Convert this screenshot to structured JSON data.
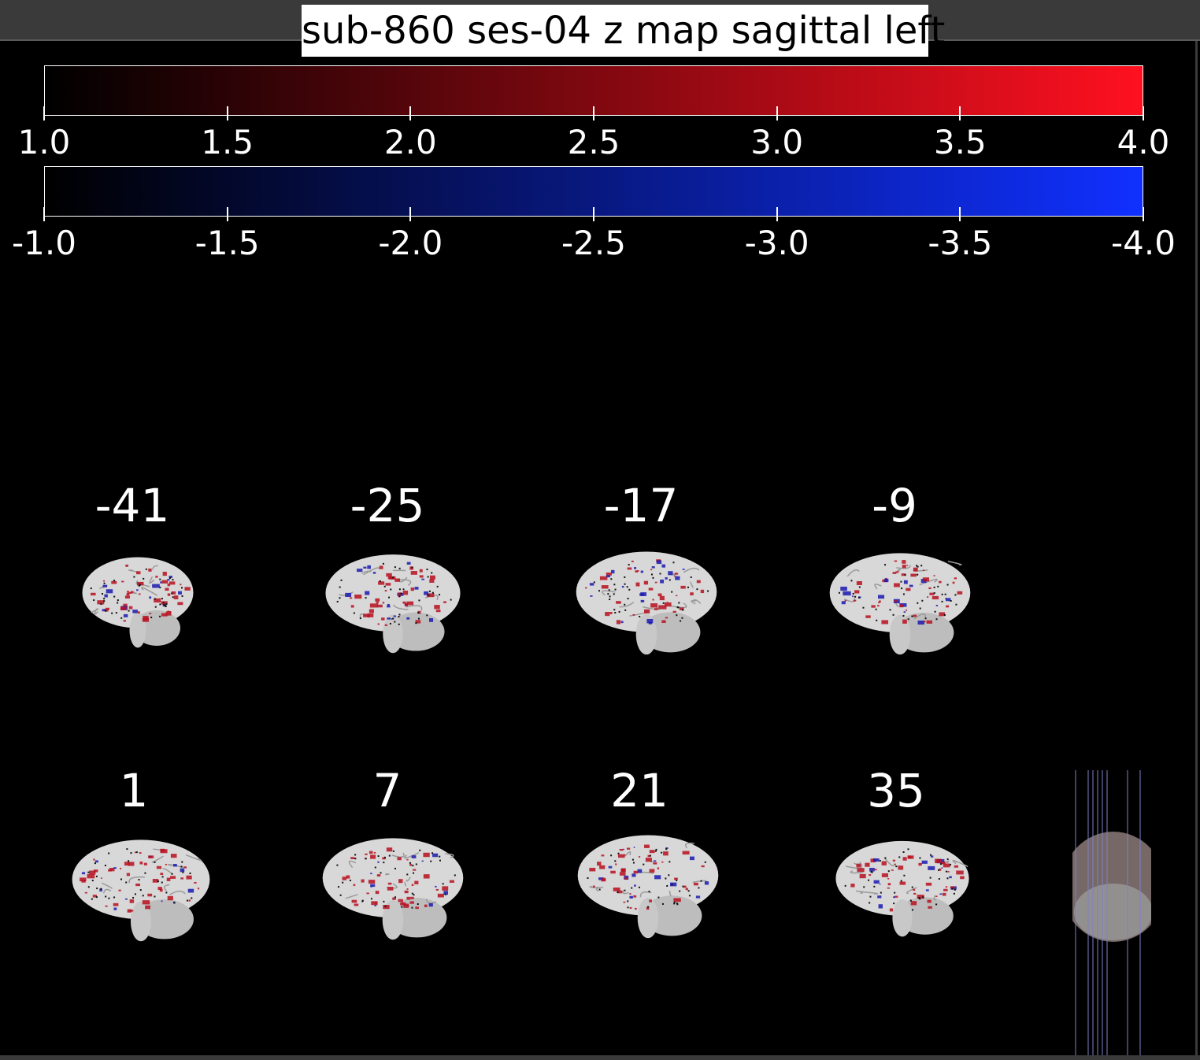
{
  "title": "sub-860 ses-04 z map sagittal left",
  "colorbars": {
    "positive": {
      "ticks": [
        "1.0",
        "1.5",
        "2.0",
        "2.5",
        "3.0",
        "3.5",
        "4.0"
      ],
      "color_low": "#000000",
      "color_high": "#ff1020"
    },
    "negative": {
      "ticks": [
        "-1.0",
        "-1.5",
        "-2.0",
        "-2.5",
        "-3.0",
        "-3.5",
        "-4.0"
      ],
      "color_low": "#000000",
      "color_high": "#1030ff"
    }
  },
  "slices": {
    "row1": [
      "-41",
      "-25",
      "-17",
      "-9"
    ],
    "row2": [
      "1",
      "7",
      "21",
      "35"
    ]
  },
  "colors": {
    "background": "#000000",
    "toolbar": "#3a3a3a",
    "brain": "#d8d8d8",
    "positive": "#b81020",
    "negative": "#1a1ab0"
  }
}
